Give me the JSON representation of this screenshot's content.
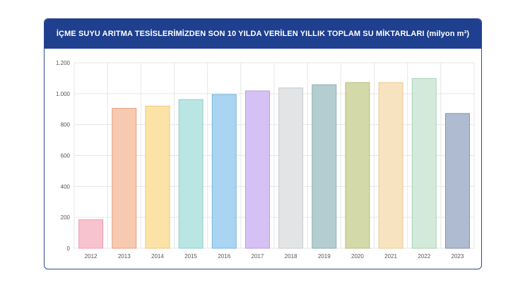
{
  "header": {
    "title": "İÇME SUYU ARITMA TESİSLERİMİZDEN SON 10 YILDA VERİLEN YILLIK TOPLAM SU MİKTARLARI (milyon m³)"
  },
  "colors": {
    "header_bg": "#1f3f8f",
    "grid": "#e6e6e6",
    "axis_text": "#555555"
  },
  "chart_data": {
    "type": "bar",
    "title": "İÇME SUYU ARITMA TESİSLERİMİZDEN SON 10 YILDA VERİLEN YILLIK TOPLAM SU MİKTARLARI (milyon m³)",
    "xlabel": "",
    "ylabel": "",
    "ylim": [
      0,
      1200
    ],
    "yticks": [
      0,
      200,
      400,
      600,
      800,
      1000,
      1200
    ],
    "ytick_labels": [
      "0",
      "200",
      "400",
      "600",
      "800",
      "1.000",
      "1.200"
    ],
    "categories": [
      "2012",
      "2013",
      "2014",
      "2015",
      "2016",
      "2017",
      "2018",
      "2019",
      "2020",
      "2021",
      "2022",
      "2023"
    ],
    "values": [
      185,
      905,
      920,
      962,
      995,
      1018,
      1037,
      1058,
      1072,
      1072,
      1098,
      872
    ],
    "bar_colors": [
      "#f7c3cf",
      "#f7c9b0",
      "#fbe3a8",
      "#b9e5e3",
      "#a9d4f2",
      "#d6c1f4",
      "#e3e4e6",
      "#b4cdd0",
      "#d4d9a9",
      "#f7e3bf",
      "#d3eadb",
      "#aebbd1"
    ],
    "bar_stroke": [
      "#f29bb0",
      "#e89e78",
      "#efc76c",
      "#8fcfcc",
      "#79b8e2",
      "#b79ae8",
      "#c9cacd",
      "#8cafb4",
      "#b6bd7c",
      "#ebc98f",
      "#a9d2b6",
      "#8191ae"
    ],
    "grid": true
  }
}
